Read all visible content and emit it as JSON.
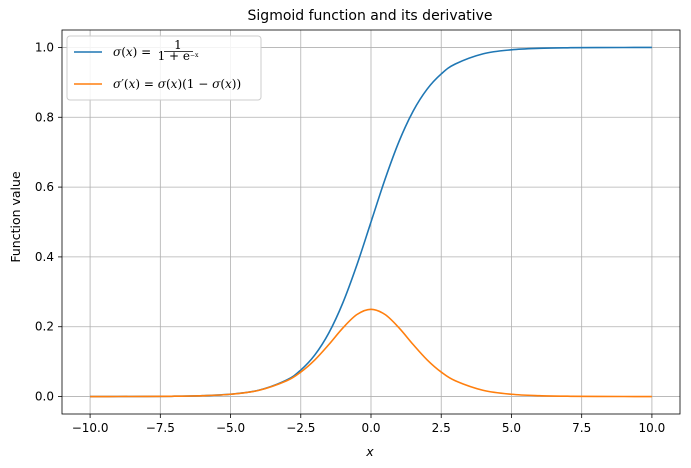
{
  "chart_data": {
    "type": "line",
    "title": "Sigmoid function and its derivative",
    "xlabel": "x",
    "ylabel": "Function value",
    "xlim": [
      -11.0,
      11.0
    ],
    "ylim": [
      -0.05,
      1.05
    ],
    "grid": true,
    "legend_position": "top-left",
    "xticks": [
      -10.0,
      -7.5,
      -5.0,
      -2.5,
      0.0,
      2.5,
      5.0,
      7.5,
      10.0
    ],
    "xtick_labels": [
      "−10.0",
      "−7.5",
      "−5.0",
      "−2.5",
      "0.0",
      "2.5",
      "5.0",
      "7.5",
      "10.0"
    ],
    "yticks": [
      0.0,
      0.2,
      0.4,
      0.6,
      0.8,
      1.0
    ],
    "ytick_labels": [
      "0.0",
      "0.2",
      "0.4",
      "0.6",
      "0.8",
      "1.0"
    ],
    "x": [
      -10,
      -9,
      -8,
      -7,
      -6,
      -5,
      -4,
      -3,
      -2.5,
      -2,
      -1.5,
      -1,
      -0.5,
      0,
      0.5,
      1,
      1.5,
      2,
      2.5,
      3,
      4,
      5,
      6,
      7,
      8,
      9,
      10
    ],
    "series": [
      {
        "name": "sigmoid",
        "legend_label": "σ(x) = 1 / (1 + e^(−x))",
        "color": "#1f77b4",
        "values": [
          0.0,
          0.0001,
          0.0003,
          0.0009,
          0.0025,
          0.0067,
          0.018,
          0.0474,
          0.0759,
          0.1192,
          0.1824,
          0.2689,
          0.3775,
          0.5,
          0.6225,
          0.7311,
          0.8176,
          0.8808,
          0.9241,
          0.9526,
          0.982,
          0.9933,
          0.9975,
          0.9991,
          0.9997,
          0.9999,
          1.0
        ]
      },
      {
        "name": "derivative",
        "legend_label": "σ′(x) = σ(x)(1 − σ(x))",
        "color": "#ff7f0e",
        "values": [
          0.0,
          0.0001,
          0.0003,
          0.0009,
          0.0025,
          0.0066,
          0.0177,
          0.0452,
          0.0701,
          0.105,
          0.1491,
          0.1966,
          0.235,
          0.25,
          0.235,
          0.1966,
          0.1491,
          0.105,
          0.0701,
          0.0452,
          0.0177,
          0.0066,
          0.0025,
          0.0009,
          0.0003,
          0.0001,
          0.0
        ]
      }
    ]
  }
}
